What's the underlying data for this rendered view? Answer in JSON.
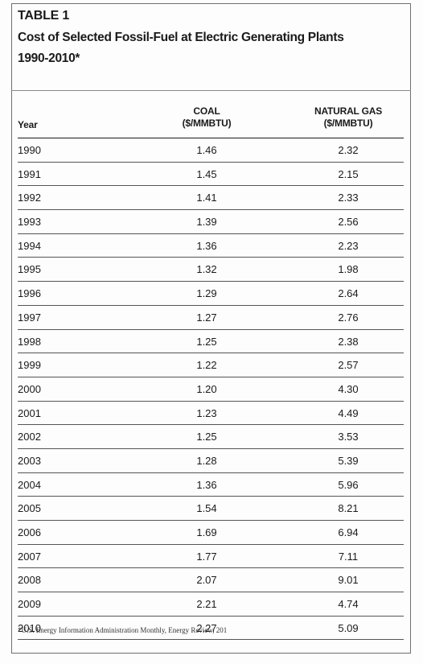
{
  "table": {
    "label": "TABLE 1",
    "title": "Cost of Selected Fossil-Fuel at Electric Generating Plants",
    "title_years": "1990-2010*",
    "columns": {
      "year": "Year",
      "coal_line1": "COAL",
      "coal_line2": "($/MMBTU)",
      "gas_line1": "NATURAL GAS",
      "gas_line2": "($/MMBTU)"
    },
    "rows": [
      {
        "year": "1990",
        "coal": "1.46",
        "gas": "2.32"
      },
      {
        "year": "1991",
        "coal": "1.45",
        "gas": "2.15"
      },
      {
        "year": "1992",
        "coal": "1.41",
        "gas": "2.33"
      },
      {
        "year": "1993",
        "coal": "1.39",
        "gas": "2.56"
      },
      {
        "year": "1994",
        "coal": "1.36",
        "gas": "2.23"
      },
      {
        "year": "1995",
        "coal": "1.32",
        "gas": "1.98"
      },
      {
        "year": "1996",
        "coal": "1.29",
        "gas": "2.64"
      },
      {
        "year": "1997",
        "coal": "1.27",
        "gas": "2.76"
      },
      {
        "year": "1998",
        "coal": "1.25",
        "gas": "2.38"
      },
      {
        "year": "1999",
        "coal": "1.22",
        "gas": "2.57"
      },
      {
        "year": "2000",
        "coal": "1.20",
        "gas": "4.30"
      },
      {
        "year": "2001",
        "coal": "1.23",
        "gas": "4.49"
      },
      {
        "year": "2002",
        "coal": "1.25",
        "gas": "3.53"
      },
      {
        "year": "2003",
        "coal": "1.28",
        "gas": "5.39"
      },
      {
        "year": "2004",
        "coal": "1.36",
        "gas": "5.96"
      },
      {
        "year": "2005",
        "coal": "1.54",
        "gas": "8.21"
      },
      {
        "year": "2006",
        "coal": "1.69",
        "gas": "6.94"
      },
      {
        "year": "2007",
        "coal": "1.77",
        "gas": "7.11"
      },
      {
        "year": "2008",
        "coal": "2.07",
        "gas": "9.01"
      },
      {
        "year": "2009",
        "coal": "2.21",
        "gas": "4.74"
      },
      {
        "year": "2010",
        "coal": "2.27",
        "gas": "5.09"
      }
    ],
    "footnote": "*U.S. Energy Information Administration Monthly, Energy Review, 201"
  }
}
